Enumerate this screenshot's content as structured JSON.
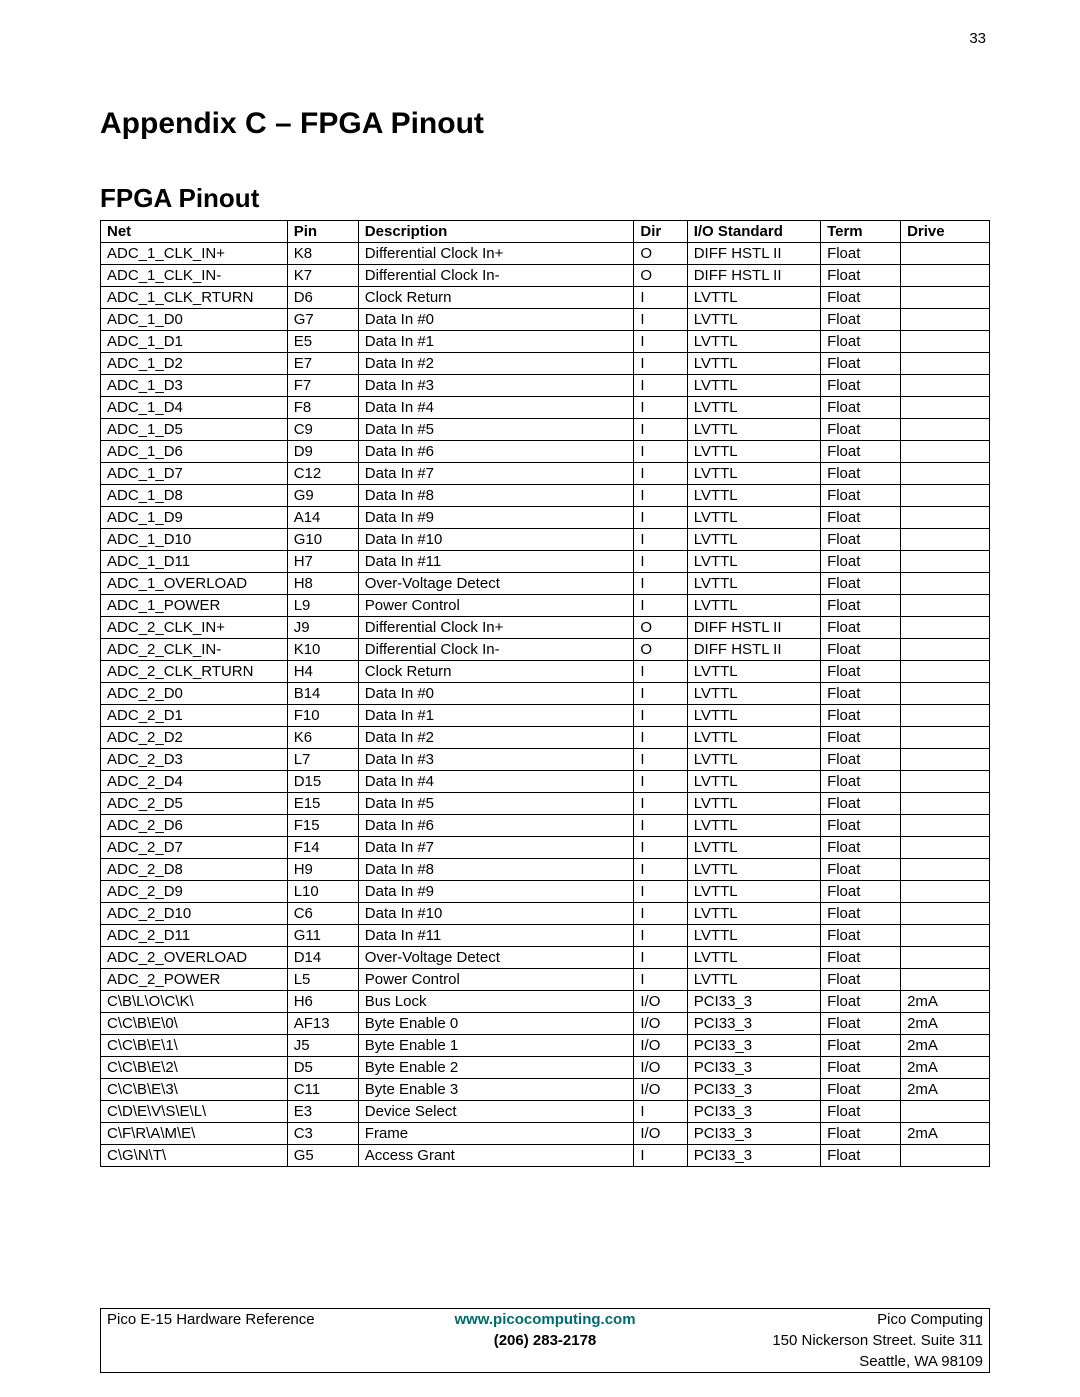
{
  "page_number": "33",
  "heading": "Appendix C – FPGA Pinout",
  "section": "FPGA Pinout",
  "columns": [
    "Net",
    "Pin",
    "Description",
    "Dir",
    "I/O Standard",
    "Term",
    "Drive"
  ],
  "column_widths_pct": [
    21,
    8,
    31,
    6,
    15,
    9,
    10
  ],
  "rows": [
    [
      "ADC_1_CLK_IN+",
      "K8",
      "Differential Clock In+",
      "O",
      "DIFF HSTL II",
      "Float",
      ""
    ],
    [
      "ADC_1_CLK_IN-",
      "K7",
      "Differential Clock In-",
      "O",
      "DIFF HSTL II",
      "Float",
      ""
    ],
    [
      "ADC_1_CLK_RTURN",
      "D6",
      "Clock Return",
      "I",
      "LVTTL",
      "Float",
      ""
    ],
    [
      "ADC_1_D0",
      "G7",
      "Data In #0",
      "I",
      "LVTTL",
      "Float",
      ""
    ],
    [
      "ADC_1_D1",
      "E5",
      "Data In #1",
      "I",
      "LVTTL",
      "Float",
      ""
    ],
    [
      "ADC_1_D2",
      "E7",
      "Data In #2",
      "I",
      "LVTTL",
      "Float",
      ""
    ],
    [
      "ADC_1_D3",
      "F7",
      "Data In #3",
      "I",
      "LVTTL",
      "Float",
      ""
    ],
    [
      "ADC_1_D4",
      "F8",
      "Data In #4",
      "I",
      "LVTTL",
      "Float",
      ""
    ],
    [
      "ADC_1_D5",
      "C9",
      "Data In #5",
      "I",
      "LVTTL",
      "Float",
      ""
    ],
    [
      "ADC_1_D6",
      "D9",
      "Data In #6",
      "I",
      "LVTTL",
      "Float",
      ""
    ],
    [
      "ADC_1_D7",
      "C12",
      "Data In #7",
      "I",
      "LVTTL",
      "Float",
      ""
    ],
    [
      "ADC_1_D8",
      "G9",
      "Data In #8",
      "I",
      "LVTTL",
      "Float",
      ""
    ],
    [
      "ADC_1_D9",
      "A14",
      "Data In #9",
      "I",
      "LVTTL",
      "Float",
      ""
    ],
    [
      "ADC_1_D10",
      "G10",
      "Data In #10",
      "I",
      "LVTTL",
      "Float",
      ""
    ],
    [
      "ADC_1_D11",
      "H7",
      "Data In #11",
      "I",
      "LVTTL",
      "Float",
      ""
    ],
    [
      "ADC_1_OVERLOAD",
      "H8",
      "Over-Voltage Detect",
      "I",
      "LVTTL",
      "Float",
      ""
    ],
    [
      "ADC_1_POWER",
      "L9",
      "Power Control",
      "I",
      "LVTTL",
      "Float",
      ""
    ],
    [
      "ADC_2_CLK_IN+",
      "J9",
      "Differential Clock In+",
      "O",
      "DIFF HSTL II",
      "Float",
      ""
    ],
    [
      "ADC_2_CLK_IN-",
      "K10",
      "Differential Clock In-",
      "O",
      "DIFF HSTL II",
      "Float",
      ""
    ],
    [
      "ADC_2_CLK_RTURN",
      "H4",
      "Clock Return",
      "I",
      "LVTTL",
      "Float",
      ""
    ],
    [
      "ADC_2_D0",
      "B14",
      "Data In #0",
      "I",
      "LVTTL",
      "Float",
      ""
    ],
    [
      "ADC_2_D1",
      "F10",
      "Data In #1",
      "I",
      "LVTTL",
      "Float",
      ""
    ],
    [
      "ADC_2_D2",
      "K6",
      "Data In #2",
      "I",
      "LVTTL",
      "Float",
      ""
    ],
    [
      "ADC_2_D3",
      "L7",
      "Data In #3",
      "I",
      "LVTTL",
      "Float",
      ""
    ],
    [
      "ADC_2_D4",
      "D15",
      "Data In #4",
      "I",
      "LVTTL",
      "Float",
      ""
    ],
    [
      "ADC_2_D5",
      "E15",
      "Data In #5",
      "I",
      "LVTTL",
      "Float",
      ""
    ],
    [
      "ADC_2_D6",
      "F15",
      "Data In #6",
      "I",
      "LVTTL",
      "Float",
      ""
    ],
    [
      "ADC_2_D7",
      "F14",
      "Data In #7",
      "I",
      "LVTTL",
      "Float",
      ""
    ],
    [
      "ADC_2_D8",
      "H9",
      "Data In #8",
      "I",
      "LVTTL",
      "Float",
      ""
    ],
    [
      "ADC_2_D9",
      "L10",
      "Data In #9",
      "I",
      "LVTTL",
      "Float",
      ""
    ],
    [
      "ADC_2_D10",
      "C6",
      "Data In #10",
      "I",
      "LVTTL",
      "Float",
      ""
    ],
    [
      "ADC_2_D11",
      "G11",
      "Data In #11",
      "I",
      "LVTTL",
      "Float",
      ""
    ],
    [
      "ADC_2_OVERLOAD",
      "D14",
      "Over-Voltage Detect",
      "I",
      "LVTTL",
      "Float",
      ""
    ],
    [
      "ADC_2_POWER",
      "L5",
      "Power Control",
      "I",
      "LVTTL",
      "Float",
      ""
    ],
    [
      "C\\B\\L\\O\\C\\K\\",
      "H6",
      "Bus Lock",
      "I/O",
      "PCI33_3",
      "Float",
      "2mA"
    ],
    [
      "C\\C\\B\\E\\0\\",
      "AF13",
      "Byte Enable 0",
      "I/O",
      "PCI33_3",
      "Float",
      "2mA"
    ],
    [
      "C\\C\\B\\E\\1\\",
      "J5",
      "Byte Enable 1",
      "I/O",
      "PCI33_3",
      "Float",
      "2mA"
    ],
    [
      "C\\C\\B\\E\\2\\",
      "D5",
      "Byte Enable 2",
      "I/O",
      "PCI33_3",
      "Float",
      "2mA"
    ],
    [
      "C\\C\\B\\E\\3\\",
      "C11",
      "Byte Enable 3",
      "I/O",
      "PCI33_3",
      "Float",
      "2mA"
    ],
    [
      "C\\D\\E\\V\\S\\E\\L\\",
      "E3",
      "Device Select",
      "I",
      "PCI33_3",
      "Float",
      ""
    ],
    [
      "C\\F\\R\\A\\M\\E\\",
      "C3",
      "Frame",
      "I/O",
      "PCI33_3",
      "Float",
      "2mA"
    ],
    [
      "C\\G\\N\\T\\",
      "G5",
      "Access Grant",
      "I",
      "PCI33_3",
      "Float",
      ""
    ]
  ],
  "footer": {
    "ref": "Pico E-15 Hardware Reference",
    "url": "www.picocomputing.com",
    "company": "Pico Computing",
    "phone": "(206) 283-2178",
    "addr1": "150 Nickerson Street. Suite 311",
    "addr2": "Seattle, WA 98109"
  }
}
